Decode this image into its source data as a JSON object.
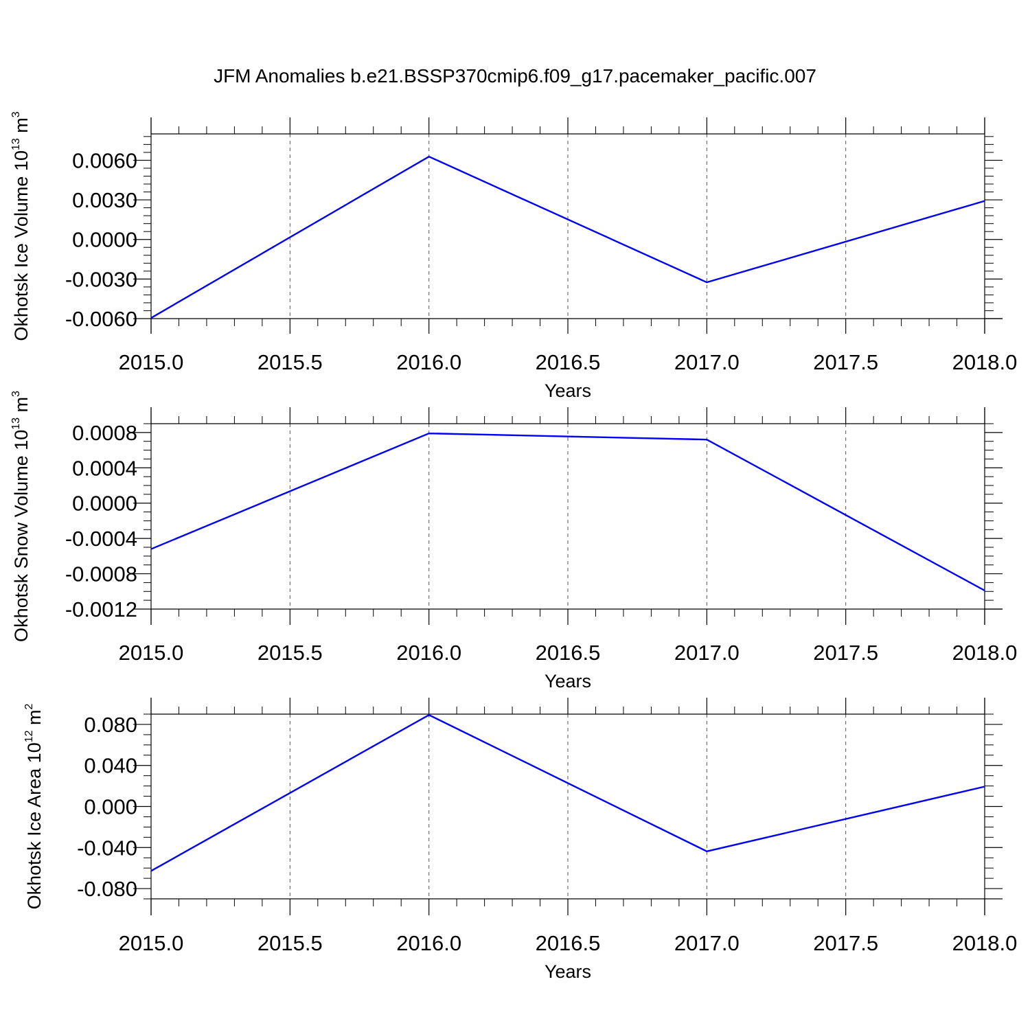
{
  "title": "JFM Anomalies b.e21.BSSP370cmip6.f09_g17.pacemaker_pacific.007",
  "line_color": "#0000ff",
  "chart_data": [
    {
      "type": "line",
      "x": [
        2015.0,
        2016.0,
        2017.0,
        2018.0
      ],
      "series": [
        {
          "values": [
            -0.00595,
            0.00628,
            -0.00325,
            0.00292
          ]
        }
      ],
      "xlabel": "Years",
      "ylabel": {
        "text": "Okhotsk Ice Volume 10",
        "exp": "13",
        "unit": " m",
        "unit_exp": "3"
      },
      "xlim": [
        2015.0,
        2018.0
      ],
      "ylim": [
        -0.006,
        0.008
      ],
      "xticks": [
        2015.0,
        2015.5,
        2016.0,
        2016.5,
        2017.0,
        2017.5,
        2018.0
      ],
      "xtick_labels": [
        "2015.0",
        "2015.5",
        "2016.0",
        "2016.5",
        "2017.0",
        "2017.5",
        "2018.0"
      ],
      "yticks": [
        -0.006,
        -0.003,
        0.0,
        0.003,
        0.006
      ],
      "ytick_labels": [
        "-0.0060",
        "-0.0030",
        "0.0000",
        "0.0030",
        "0.0060"
      ],
      "yminor_step": 0.0006,
      "grid": "vertical-dashed"
    },
    {
      "type": "line",
      "x": [
        2015.0,
        2016.0,
        2017.0,
        2018.0
      ],
      "series": [
        {
          "values": [
            -0.00052,
            0.00079,
            0.00072,
            -0.00099
          ]
        }
      ],
      "xlabel": "Years",
      "ylabel": {
        "text": "Okhotsk Snow Volume 10",
        "exp": "13",
        "unit": " m",
        "unit_exp": "3"
      },
      "xlim": [
        2015.0,
        2018.0
      ],
      "ylim": [
        -0.0012,
        0.0009
      ],
      "xticks": [
        2015.0,
        2015.5,
        2016.0,
        2016.5,
        2017.0,
        2017.5,
        2018.0
      ],
      "xtick_labels": [
        "2015.0",
        "2015.5",
        "2016.0",
        "2016.5",
        "2017.0",
        "2017.5",
        "2018.0"
      ],
      "yticks": [
        -0.0012,
        -0.0008,
        -0.0004,
        0.0,
        0.0004,
        0.0008
      ],
      "ytick_labels": [
        "-0.0012",
        "-0.0008",
        "-0.0004",
        "0.0000",
        "0.0004",
        "0.0008"
      ],
      "yminor_step": 0.0001,
      "grid": "vertical-dashed"
    },
    {
      "type": "line",
      "x": [
        2015.0,
        2016.0,
        2017.0,
        2018.0
      ],
      "series": [
        {
          "values": [
            -0.0628,
            0.0892,
            -0.0437,
            0.0194
          ]
        }
      ],
      "xlabel": "Years",
      "ylabel": {
        "text": "Okhotsk Ice Area 10",
        "exp": "12",
        "unit": " m",
        "unit_exp": "2"
      },
      "xlim": [
        2015.0,
        2018.0
      ],
      "ylim": [
        -0.09,
        0.09
      ],
      "xticks": [
        2015.0,
        2015.5,
        2016.0,
        2016.5,
        2017.0,
        2017.5,
        2018.0
      ],
      "xtick_labels": [
        "2015.0",
        "2015.5",
        "2016.0",
        "2016.5",
        "2017.0",
        "2017.5",
        "2018.0"
      ],
      "yticks": [
        -0.08,
        -0.04,
        0.0,
        0.04,
        0.08
      ],
      "ytick_labels": [
        "-0.080",
        "-0.040",
        "0.000",
        "0.040",
        "0.080"
      ],
      "yminor_step": 0.01,
      "grid": "vertical-dashed"
    }
  ]
}
